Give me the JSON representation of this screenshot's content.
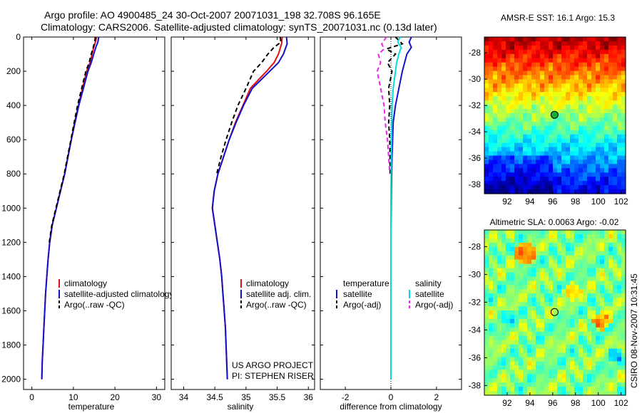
{
  "header": {
    "line1": "Argo profile: AO 4900485_24 30-Oct-2007 20071031_198 32.708S 96.165E",
    "line2": "Climatology: CARS2006. Satellite-adjusted climatology: synTS_20071031.nc (0.13d later)"
  },
  "side_stamp": "CSIRO 08-Nov-2007 10:31:45",
  "chart_data": [
    {
      "type": "line",
      "id": "temperature",
      "xlabel": "temperature",
      "xlim": [
        -2,
        32
      ],
      "ylim": [
        2060,
        0
      ],
      "xticks": [
        0,
        10,
        20,
        30
      ],
      "yticks": [
        0,
        200,
        400,
        600,
        800,
        1000,
        1200,
        1400,
        1600,
        1800,
        2000
      ],
      "series": [
        {
          "name": "climatology",
          "color": "#dd1111",
          "dash": "solid",
          "points": [
            [
              15.6,
              0
            ],
            [
              15.3,
              30
            ],
            [
              14.9,
              60
            ],
            [
              14.5,
              100
            ],
            [
              14.0,
              150
            ],
            [
              13.2,
              200
            ],
            [
              12.2,
              300
            ],
            [
              11.2,
              400
            ],
            [
              10.3,
              500
            ],
            [
              9.5,
              600
            ],
            [
              8.7,
              700
            ],
            [
              7.9,
              800
            ],
            [
              6.9,
              900
            ],
            [
              5.9,
              1000
            ],
            [
              4.9,
              1100
            ],
            [
              4.3,
              1200
            ],
            [
              3.9,
              1300
            ],
            [
              3.6,
              1400
            ],
            [
              3.3,
              1500
            ],
            [
              3.1,
              1600
            ],
            [
              2.9,
              1700
            ],
            [
              2.7,
              1800
            ],
            [
              2.5,
              1900
            ],
            [
              2.4,
              2000
            ]
          ]
        },
        {
          "name": "satellite-adjusted climatology",
          "color": "#1111cc",
          "dash": "solid",
          "points": [
            [
              16.1,
              0
            ],
            [
              15.9,
              30
            ],
            [
              15.4,
              60
            ],
            [
              14.9,
              100
            ],
            [
              14.3,
              150
            ],
            [
              13.5,
              200
            ],
            [
              12.4,
              300
            ],
            [
              11.3,
              400
            ],
            [
              10.4,
              500
            ],
            [
              9.5,
              600
            ],
            [
              8.7,
              700
            ],
            [
              7.9,
              800
            ],
            [
              6.9,
              900
            ],
            [
              5.9,
              1000
            ],
            [
              4.9,
              1100
            ],
            [
              4.3,
              1200
            ],
            [
              3.9,
              1300
            ],
            [
              3.6,
              1400
            ],
            [
              3.3,
              1500
            ],
            [
              3.1,
              1600
            ],
            [
              2.9,
              1700
            ],
            [
              2.7,
              1800
            ],
            [
              2.5,
              1900
            ],
            [
              2.4,
              2000
            ]
          ]
        },
        {
          "name": "Argo(..raw -QC)",
          "color": "#000000",
          "dash": "dashed",
          "points": [
            [
              15.3,
              0
            ],
            [
              15.1,
              30
            ],
            [
              14.8,
              60
            ],
            [
              14.3,
              100
            ],
            [
              13.8,
              150
            ],
            [
              13.0,
              200
            ],
            [
              12.0,
              300
            ],
            [
              11.0,
              400
            ],
            [
              10.2,
              500
            ],
            [
              9.4,
              600
            ],
            [
              8.6,
              700
            ],
            [
              7.8,
              800
            ],
            [
              6.8,
              900
            ],
            [
              5.8,
              1000
            ],
            [
              4.8,
              1100
            ],
            [
              4.2,
              1200
            ]
          ]
        }
      ],
      "legend": [
        "climatology",
        "satellite-adjusted climatology",
        "Argo(..raw -QC)"
      ]
    },
    {
      "type": "line",
      "id": "salinity",
      "xlabel": "salinity",
      "xlim": [
        33.8,
        36.1
      ],
      "ylim": [
        2060,
        0
      ],
      "xticks": [
        34,
        34.5,
        35,
        35.5,
        36
      ],
      "series": [
        {
          "name": "climatology",
          "color": "#dd1111",
          "dash": "solid",
          "points": [
            [
              35.58,
              0
            ],
            [
              35.57,
              40
            ],
            [
              35.52,
              100
            ],
            [
              35.45,
              150
            ],
            [
              35.33,
              200
            ],
            [
              35.2,
              250
            ],
            [
              35.07,
              300
            ],
            [
              34.95,
              400
            ],
            [
              34.83,
              500
            ],
            [
              34.73,
              600
            ],
            [
              34.64,
              700
            ],
            [
              34.55,
              800
            ],
            [
              34.49,
              900
            ],
            [
              34.46,
              1000
            ],
            [
              34.5,
              1100
            ],
            [
              34.54,
              1200
            ],
            [
              34.58,
              1300
            ],
            [
              34.61,
              1400
            ],
            [
              34.63,
              1500
            ],
            [
              34.65,
              1600
            ],
            [
              34.67,
              1700
            ],
            [
              34.68,
              1800
            ],
            [
              34.69,
              1900
            ],
            [
              34.7,
              2000
            ]
          ]
        },
        {
          "name": "satellite adj. clim.",
          "color": "#1111cc",
          "dash": "solid",
          "points": [
            [
              35.65,
              0
            ],
            [
              35.66,
              40
            ],
            [
              35.6,
              100
            ],
            [
              35.52,
              150
            ],
            [
              35.38,
              200
            ],
            [
              35.24,
              250
            ],
            [
              35.1,
              300
            ],
            [
              34.96,
              400
            ],
            [
              34.84,
              500
            ],
            [
              34.73,
              600
            ],
            [
              34.64,
              700
            ],
            [
              34.55,
              800
            ],
            [
              34.49,
              900
            ],
            [
              34.46,
              1000
            ],
            [
              34.5,
              1100
            ],
            [
              34.54,
              1200
            ],
            [
              34.58,
              1300
            ],
            [
              34.61,
              1400
            ],
            [
              34.63,
              1500
            ],
            [
              34.65,
              1600
            ],
            [
              34.67,
              1700
            ],
            [
              34.68,
              1800
            ],
            [
              34.69,
              1900
            ],
            [
              34.7,
              2000
            ]
          ]
        },
        {
          "name": "Argo(..raw -QC)",
          "color": "#000000",
          "dash": "dashed",
          "points": [
            [
              35.55,
              0
            ],
            [
              35.56,
              30
            ],
            [
              35.45,
              60
            ],
            [
              35.35,
              100
            ],
            [
              35.25,
              150
            ],
            [
              35.12,
              200
            ],
            [
              35.0,
              300
            ],
            [
              34.87,
              400
            ],
            [
              34.77,
              500
            ],
            [
              34.68,
              600
            ],
            [
              34.6,
              700
            ],
            [
              34.53,
              800
            ]
          ]
        }
      ],
      "legend": [
        "climatology",
        "satellite adj. clim.",
        "Argo(..raw -QC)"
      ],
      "annotation": [
        "US ARGO PROJECT",
        "PI: STEPHEN RISER"
      ]
    },
    {
      "type": "line",
      "id": "difference",
      "xlabel": "difference from climatology",
      "xlim": [
        -3.1,
        3.1
      ],
      "ylim": [
        2060,
        0
      ],
      "xticks": [
        -2,
        0,
        2
      ],
      "series": [
        {
          "name": "temperature satellite",
          "color": "#1111cc",
          "dash": "solid",
          "points": [
            [
              0.9,
              0
            ],
            [
              0.8,
              30
            ],
            [
              0.9,
              60
            ],
            [
              0.7,
              100
            ],
            [
              0.5,
              200
            ],
            [
              0.35,
              300
            ],
            [
              0.2,
              400
            ],
            [
              0.1,
              500
            ],
            [
              0.05,
              700
            ],
            [
              0.02,
              900
            ],
            [
              0.0,
              1200
            ],
            [
              0.0,
              2000
            ]
          ]
        },
        {
          "name": "temperature Argo(-adj)",
          "color": "#000000",
          "dash": "dashed",
          "points": [
            [
              0.2,
              0
            ],
            [
              0.5,
              40
            ],
            [
              -0.2,
              70
            ],
            [
              0.2,
              100
            ],
            [
              -0.15,
              150
            ],
            [
              0.05,
              200
            ],
            [
              -0.1,
              300
            ],
            [
              -0.05,
              400
            ],
            [
              -0.1,
              500
            ],
            [
              -0.05,
              600
            ],
            [
              -0.03,
              800
            ]
          ]
        },
        {
          "name": "salinity satellite",
          "color": "#00dddd",
          "dash": "solid",
          "points": [
            [
              0.4,
              0
            ],
            [
              0.3,
              30
            ],
            [
              0.45,
              60
            ],
            [
              0.35,
              100
            ],
            [
              0.25,
              150
            ],
            [
              0.2,
              200
            ],
            [
              0.1,
              300
            ],
            [
              0.05,
              400
            ],
            [
              0.03,
              600
            ],
            [
              0.0,
              900
            ],
            [
              0.0,
              2000
            ]
          ]
        },
        {
          "name": "salinity Argo(-adj)",
          "color": "#ee22ee",
          "dash": "dashed",
          "points": [
            [
              -0.2,
              0
            ],
            [
              -0.4,
              40
            ],
            [
              -0.3,
              70
            ],
            [
              -0.55,
              100
            ],
            [
              -0.45,
              150
            ],
            [
              -0.6,
              200
            ],
            [
              -0.45,
              300
            ],
            [
              -0.3,
              400
            ],
            [
              -0.25,
              500
            ],
            [
              -0.15,
              600
            ],
            [
              -0.1,
              700
            ],
            [
              -0.05,
              800
            ]
          ]
        }
      ],
      "legend_temp": [
        "temperature",
        "satellite",
        "Argo(-adj)"
      ],
      "legend_sal": [
        "salinity",
        "satellite",
        "Argo(-adj)"
      ]
    },
    {
      "type": "heatmap",
      "id": "sst",
      "title": "AMSR-E SST: 16.1 Argo: 15.3",
      "xlim": [
        90,
        102.4
      ],
      "ylim": [
        -38.7,
        -26.8
      ],
      "xticks": [
        92,
        94,
        96,
        98,
        100,
        102
      ],
      "yticks": [
        -28,
        -30,
        -32,
        -34,
        -36,
        -38
      ],
      "marker": [
        96.165,
        -32.708
      ],
      "colormap": "jet"
    },
    {
      "type": "heatmap",
      "id": "sla",
      "title": "Altimetric SLA: 0.0063 Argo: -0.02",
      "xlim": [
        90,
        102.4
      ],
      "ylim": [
        -38.7,
        -26.8
      ],
      "xticks": [
        92,
        94,
        96,
        98,
        100,
        102
      ],
      "yticks": [
        -28,
        -30,
        -32,
        -34,
        -36,
        -38
      ],
      "marker": [
        96.165,
        -32.708
      ],
      "colormap": "jet"
    }
  ]
}
